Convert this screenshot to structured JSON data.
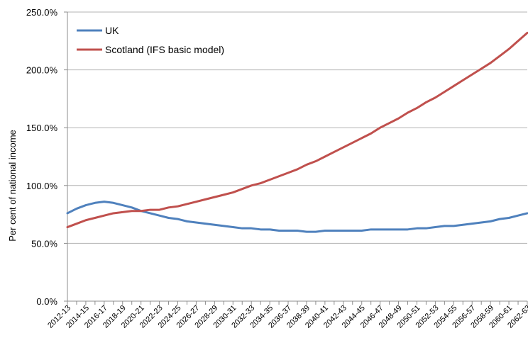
{
  "chart_data": {
    "type": "line",
    "title": "",
    "xlabel": "",
    "ylabel": "Per cent of national income",
    "ylim": [
      0,
      250
    ],
    "y_ticks": [
      "0.0%",
      "50.0%",
      "100.0%",
      "150.0%",
      "200.0%",
      "250.0%"
    ],
    "grid": true,
    "legend_position": "top-left",
    "categories": [
      "2012-13",
      "2013-14",
      "2014-15",
      "2015-16",
      "2016-17",
      "2017-18",
      "2018-19",
      "2019-20",
      "2020-21",
      "2021-22",
      "2022-23",
      "2023-24",
      "2024-25",
      "2025-26",
      "2026-27",
      "2027-28",
      "2028-29",
      "2029-30",
      "2030-31",
      "2031-32",
      "2032-33",
      "2033-34",
      "2034-35",
      "2035-36",
      "2036-37",
      "2037-38",
      "2038-39",
      "2039-40",
      "2040-41",
      "2041-42",
      "2042-43",
      "2043-44",
      "2044-45",
      "2045-46",
      "2046-47",
      "2047-48",
      "2048-49",
      "2049-50",
      "2050-51",
      "2051-52",
      "2052-53",
      "2053-54",
      "2054-55",
      "2055-56",
      "2056-57",
      "2057-58",
      "2058-59",
      "2059-60",
      "2060-61",
      "2061-62",
      "2062-63"
    ],
    "tick_labels": [
      "2012-13",
      "2014-15",
      "2016-17",
      "2018-19",
      "2020-21",
      "2022-23",
      "2024-25",
      "2026-27",
      "2028-29",
      "2030-31",
      "2032-33",
      "2034-35",
      "2036-37",
      "2038-39",
      "2040-41",
      "2042-43",
      "2044-45",
      "2046-47",
      "2048-49",
      "2050-51",
      "2052-53",
      "2054-55",
      "2056-57",
      "2058-59",
      "2060-61",
      "2062-63"
    ],
    "series": [
      {
        "name": "UK",
        "color": "#4f81bd",
        "values": [
          76,
          80,
          83,
          85,
          86,
          85,
          83,
          81,
          78,
          76,
          74,
          72,
          71,
          69,
          68,
          67,
          66,
          65,
          64,
          63,
          63,
          62,
          62,
          61,
          61,
          61,
          60,
          60,
          61,
          61,
          61,
          61,
          61,
          62,
          62,
          62,
          62,
          62,
          63,
          63,
          64,
          65,
          65,
          66,
          67,
          68,
          69,
          71,
          72,
          74,
          76
        ]
      },
      {
        "name": "Scotland (IFS basic model)",
        "color": "#c0504d",
        "values": [
          64,
          67,
          70,
          72,
          74,
          76,
          77,
          78,
          78,
          79,
          79,
          81,
          82,
          84,
          86,
          88,
          90,
          92,
          94,
          97,
          100,
          102,
          105,
          108,
          111,
          114,
          118,
          121,
          125,
          129,
          133,
          137,
          141,
          145,
          150,
          154,
          158,
          163,
          167,
          172,
          176,
          181,
          186,
          191,
          196,
          201,
          206,
          212,
          218,
          225,
          232
        ]
      }
    ]
  }
}
